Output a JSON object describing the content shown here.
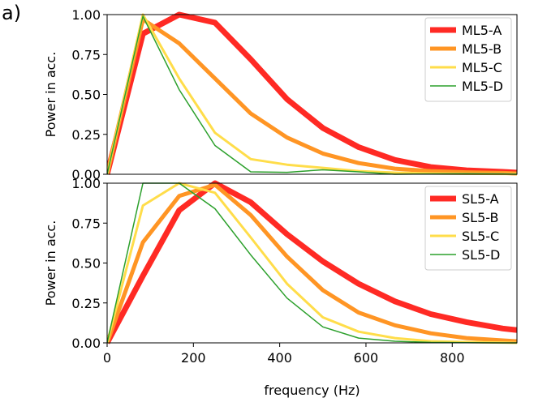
{
  "figure": {
    "panel_label": "a)"
  },
  "chart_data": [
    {
      "type": "line",
      "title": "",
      "xlabel": "",
      "ylabel": "Power in acc.",
      "xlim": [
        0,
        950
      ],
      "ylim": [
        0,
        1.0
      ],
      "xticks": [],
      "yticks": [
        "0.00",
        "0.25",
        "0.50",
        "0.75",
        "1.00"
      ],
      "grid": false,
      "legend_position": "top-right",
      "x": [
        0,
        83,
        167,
        250,
        333,
        417,
        500,
        583,
        667,
        750,
        833,
        917,
        950
      ],
      "series": [
        {
          "name": "ML5-A",
          "color": "#ff2a24",
          "width": 7,
          "values": [
            0.0,
            0.88,
            1.0,
            0.95,
            0.72,
            0.47,
            0.29,
            0.17,
            0.09,
            0.045,
            0.025,
            0.015,
            0.01
          ]
        },
        {
          "name": "ML5-B",
          "color": "#ff9524",
          "width": 5,
          "values": [
            0.0,
            0.97,
            0.82,
            0.6,
            0.38,
            0.23,
            0.13,
            0.07,
            0.035,
            0.02,
            0.012,
            0.008,
            0.005
          ]
        },
        {
          "name": "ML5-C",
          "color": "#ffdd4a",
          "width": 3,
          "values": [
            0.0,
            1.0,
            0.6,
            0.26,
            0.095,
            0.06,
            0.04,
            0.02,
            0.01,
            0.005,
            0.003,
            0.002,
            0.002
          ]
        },
        {
          "name": "ML5-D",
          "color": "#2ca02c",
          "width": 1.5,
          "values": [
            0.0,
            0.99,
            0.53,
            0.18,
            0.015,
            0.012,
            0.028,
            0.015,
            0.0,
            0.002,
            0.003,
            0.002,
            0.0
          ]
        }
      ]
    },
    {
      "type": "line",
      "title": "",
      "xlabel": "frequency (Hz)",
      "ylabel": "Power in acc.",
      "xlim": [
        0,
        950
      ],
      "ylim": [
        0,
        1.0
      ],
      "xticks": [
        "0",
        "200",
        "400",
        "600",
        "800"
      ],
      "yticks": [
        "0.00",
        "0.25",
        "0.50",
        "0.75",
        "1.00"
      ],
      "grid": false,
      "legend_position": "top-right",
      "x": [
        0,
        83,
        167,
        250,
        333,
        417,
        500,
        583,
        667,
        750,
        833,
        917,
        950
      ],
      "series": [
        {
          "name": "SL5-A",
          "color": "#ff2a24",
          "width": 7,
          "values": [
            0.0,
            0.42,
            0.83,
            1.0,
            0.88,
            0.68,
            0.51,
            0.37,
            0.26,
            0.18,
            0.13,
            0.09,
            0.08
          ]
        },
        {
          "name": "SL5-B",
          "color": "#ff9524",
          "width": 5,
          "values": [
            0.0,
            0.63,
            0.92,
            0.99,
            0.8,
            0.54,
            0.33,
            0.19,
            0.11,
            0.06,
            0.03,
            0.015,
            0.01
          ]
        },
        {
          "name": "SL5-C",
          "color": "#ffdd4a",
          "width": 3,
          "values": [
            0.0,
            0.86,
            1.0,
            0.94,
            0.66,
            0.37,
            0.16,
            0.07,
            0.03,
            0.01,
            0.005,
            0.002,
            0.0
          ]
        },
        {
          "name": "SL5-D",
          "color": "#2ca02c",
          "width": 1.5,
          "values": [
            0.0,
            1.0,
            1.0,
            0.84,
            0.55,
            0.28,
            0.1,
            0.03,
            0.01,
            0.003,
            0.001,
            0.0,
            0.0
          ]
        }
      ]
    }
  ]
}
